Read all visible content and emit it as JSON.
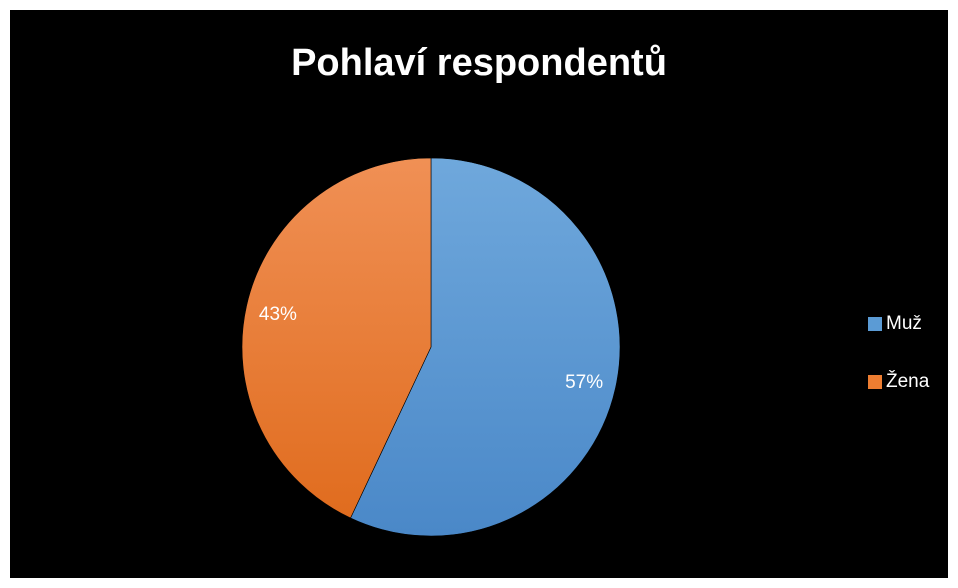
{
  "chart_data": {
    "type": "pie",
    "title": "Pohlaví respondentů",
    "slices": [
      {
        "name": "Muž",
        "value": 57,
        "label": "57%",
        "color": "#5b9bd5"
      },
      {
        "name": "Žena",
        "value": 43,
        "label": "43%",
        "color": "#ed7d31"
      }
    ],
    "legend": "right",
    "background": "#000000"
  }
}
